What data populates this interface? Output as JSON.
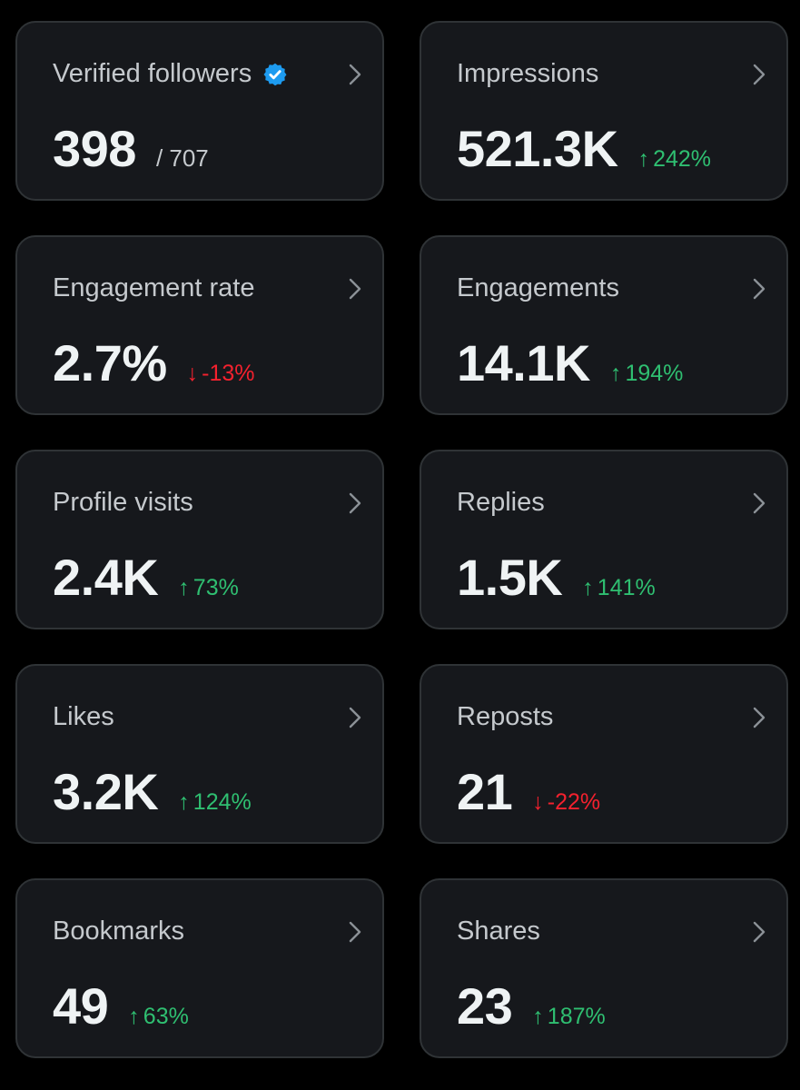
{
  "colors": {
    "background": "#000000",
    "card": "#16181c",
    "border": "#2f3336",
    "up": "#2fbf71",
    "down": "#f4212e",
    "verified": "#1d9bf0"
  },
  "cards": [
    {
      "title": "Verified followers",
      "value": "398",
      "sub": "/ 707",
      "icon": "verified-badge-icon"
    },
    {
      "title": "Impressions",
      "value": "521.3K",
      "arrow": "↑",
      "change": "242%",
      "trend": "up"
    },
    {
      "title": "Engagement rate",
      "value": "2.7%",
      "arrow": "↓",
      "change": "-13%",
      "trend": "down"
    },
    {
      "title": "Engagements",
      "value": "14.1K",
      "arrow": "↑",
      "change": "194%",
      "trend": "up"
    },
    {
      "title": "Profile visits",
      "value": "2.4K",
      "arrow": "↑",
      "change": "73%",
      "trend": "up"
    },
    {
      "title": "Replies",
      "value": "1.5K",
      "arrow": "↑",
      "change": "141%",
      "trend": "up"
    },
    {
      "title": "Likes",
      "value": "3.2K",
      "arrow": "↑",
      "change": "124%",
      "trend": "up"
    },
    {
      "title": "Reposts",
      "value": "21",
      "arrow": "↓",
      "change": "-22%",
      "trend": "down"
    },
    {
      "title": "Bookmarks",
      "value": "49",
      "arrow": "↑",
      "change": "63%",
      "trend": "up"
    },
    {
      "title": "Shares",
      "value": "23",
      "arrow": "↑",
      "change": "187%",
      "trend": "up"
    }
  ]
}
